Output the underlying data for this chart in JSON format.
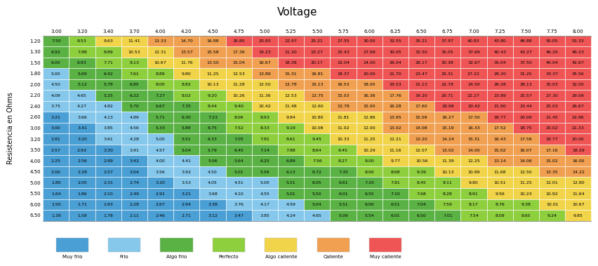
{
  "title": "Voltage",
  "ylabel": "Resistencia en Ohms",
  "col_headers": [
    "3.00",
    "3.20",
    "3.40",
    "3.70",
    "4.00",
    "4.20",
    "4.50",
    "4.75",
    "5.00",
    "5.25",
    "5.50",
    "5.75",
    "6.00",
    "6.25",
    "6.50",
    "6.75",
    "7.00",
    "7.25",
    "7.50",
    "7.75",
    "8.00"
  ],
  "row_headers": [
    "1.20",
    "1.30",
    "1.50",
    "1.80",
    "2.00",
    "2.20",
    "2.40",
    "2.60",
    "3.00",
    "3.20",
    "3.50",
    "4.00",
    "4.50",
    "5.00",
    "5.50",
    "6.00",
    "6.50"
  ],
  "table": [
    [
      7.5,
      8.53,
      9.63,
      11.41,
      13.33,
      14.7,
      16.88,
      18.8,
      20.83,
      22.97,
      25.21,
      27.55,
      30.0,
      32.55,
      35.21,
      37.97,
      40.83,
      43.8,
      46.88,
      50.05,
      53.33
    ],
    [
      6.92,
      7.88,
      8.89,
      10.53,
      12.31,
      13.57,
      15.58,
      17.36,
      19.23,
      21.2,
      23.27,
      25.43,
      27.69,
      30.05,
      32.5,
      35.05,
      37.69,
      40.43,
      43.27,
      46.2,
      49.23
    ],
    [
      6.0,
      6.83,
      7.71,
      9.13,
      10.67,
      11.76,
      13.5,
      15.04,
      16.67,
      18.38,
      20.17,
      22.04,
      24.0,
      26.04,
      28.17,
      30.38,
      32.67,
      35.04,
      37.5,
      40.04,
      42.67
    ],
    [
      5.0,
      5.69,
      6.42,
      7.61,
      8.89,
      9.8,
      11.25,
      12.53,
      13.89,
      15.31,
      16.81,
      18.37,
      20.0,
      21.7,
      23.47,
      25.31,
      27.22,
      29.2,
      31.25,
      33.37,
      35.56
    ],
    [
      4.5,
      5.12,
      5.78,
      6.85,
      8.0,
      8.82,
      10.13,
      11.28,
      12.5,
      13.78,
      15.13,
      16.53,
      18.0,
      19.53,
      21.13,
      22.78,
      24.5,
      26.28,
      28.13,
      30.03,
      32.0
    ],
    [
      4.09,
      4.65,
      5.25,
      6.22,
      7.27,
      8.02,
      9.2,
      10.26,
      11.36,
      12.53,
      13.75,
      15.03,
      16.36,
      17.76,
      19.2,
      20.71,
      22.27,
      23.89,
      25.57,
      27.3,
      29.09
    ],
    [
      3.75,
      4.27,
      4.82,
      5.7,
      6.67,
      7.35,
      8.44,
      9.4,
      10.42,
      11.48,
      12.6,
      13.78,
      15.0,
      16.28,
      17.6,
      18.98,
      20.42,
      21.9,
      23.44,
      25.03,
      26.67
    ],
    [
      3.21,
      3.66,
      4.13,
      4.89,
      5.71,
      6.3,
      7.23,
      8.06,
      8.93,
      9.84,
      10.8,
      11.81,
      12.86,
      13.95,
      15.09,
      16.27,
      17.5,
      18.77,
      20.09,
      21.45,
      22.86
    ],
    [
      3.0,
      3.41,
      3.85,
      4.56,
      5.33,
      5.88,
      6.75,
      7.52,
      8.33,
      9.19,
      10.08,
      11.02,
      12.0,
      13.02,
      14.08,
      15.19,
      16.33,
      17.52,
      18.75,
      20.02,
      21.33
    ],
    [
      2.81,
      3.2,
      3.61,
      4.28,
      5.0,
      5.51,
      6.33,
      7.05,
      7.81,
      8.61,
      9.45,
      10.33,
      11.25,
      12.21,
      13.2,
      14.24,
      15.31,
      16.43,
      17.58,
      18.77,
      20.0
    ],
    [
      2.57,
      2.93,
      3.3,
      3.91,
      4.57,
      5.04,
      5.79,
      6.45,
      7.14,
      7.88,
      8.64,
      9.45,
      10.29,
      11.16,
      12.07,
      13.02,
      14.0,
      15.02,
      16.07,
      17.16,
      18.29
    ],
    [
      2.25,
      2.56,
      2.89,
      3.42,
      4.0,
      4.41,
      5.06,
      5.64,
      6.25,
      6.89,
      7.56,
      8.27,
      9.0,
      9.77,
      10.56,
      11.39,
      12.25,
      13.14,
      14.06,
      15.02,
      16.0
    ],
    [
      2.0,
      2.28,
      2.57,
      3.04,
      3.56,
      3.92,
      4.5,
      5.01,
      5.56,
      6.13,
      6.72,
      7.35,
      8.0,
      8.68,
      9.39,
      10.13,
      10.89,
      11.68,
      12.5,
      13.35,
      14.22
    ],
    [
      1.8,
      2.05,
      2.31,
      2.74,
      3.2,
      3.53,
      4.05,
      4.51,
      5.0,
      5.51,
      6.05,
      6.61,
      7.2,
      7.81,
      8.45,
      9.11,
      9.8,
      10.51,
      11.25,
      12.01,
      12.8
    ],
    [
      1.64,
      1.86,
      2.1,
      2.49,
      2.91,
      3.21,
      3.68,
      4.1,
      4.55,
      5.01,
      5.5,
      6.01,
      6.55,
      7.1,
      7.68,
      8.28,
      8.91,
      9.56,
      10.23,
      10.92,
      11.64
    ],
    [
      1.5,
      1.71,
      1.93,
      2.28,
      2.67,
      2.94,
      3.38,
      3.76,
      4.17,
      4.59,
      5.04,
      5.51,
      6.0,
      6.51,
      7.04,
      7.59,
      8.17,
      8.76,
      9.38,
      10.01,
      10.67
    ],
    [
      1.38,
      1.58,
      1.78,
      2.11,
      2.46,
      2.71,
      3.12,
      3.47,
      3.85,
      4.24,
      4.65,
      5.09,
      5.54,
      6.01,
      6.5,
      7.01,
      7.54,
      8.09,
      8.65,
      9.24,
      9.85
    ]
  ],
  "legend": [
    {
      "label": "Muy frio",
      "color": "#4a9fd4"
    },
    {
      "label": "Frio",
      "color": "#85c8ec"
    },
    {
      "label": "Algo frio",
      "color": "#5ab244"
    },
    {
      "label": "Perfecto",
      "color": "#8ecf3e"
    },
    {
      "label": "Algo caliente",
      "color": "#f2d44a"
    },
    {
      "label": "Caliente",
      "color": "#f0a050"
    },
    {
      "label": "Muy caliente",
      "color": "#f05555"
    }
  ],
  "thresholds": [
    3.5,
    5.0,
    7.5,
    9.5,
    13.0,
    18.0
  ],
  "colors": [
    "#4a9fd4",
    "#85c8ec",
    "#5ab244",
    "#8ecf3e",
    "#f2d44a",
    "#f0a050",
    "#f05555"
  ],
  "bg_color": "#ffffff",
  "cell_text_size": 4.5,
  "header_text_size": 5.0,
  "title_fontsize": 11,
  "ylabel_fontsize": 7
}
